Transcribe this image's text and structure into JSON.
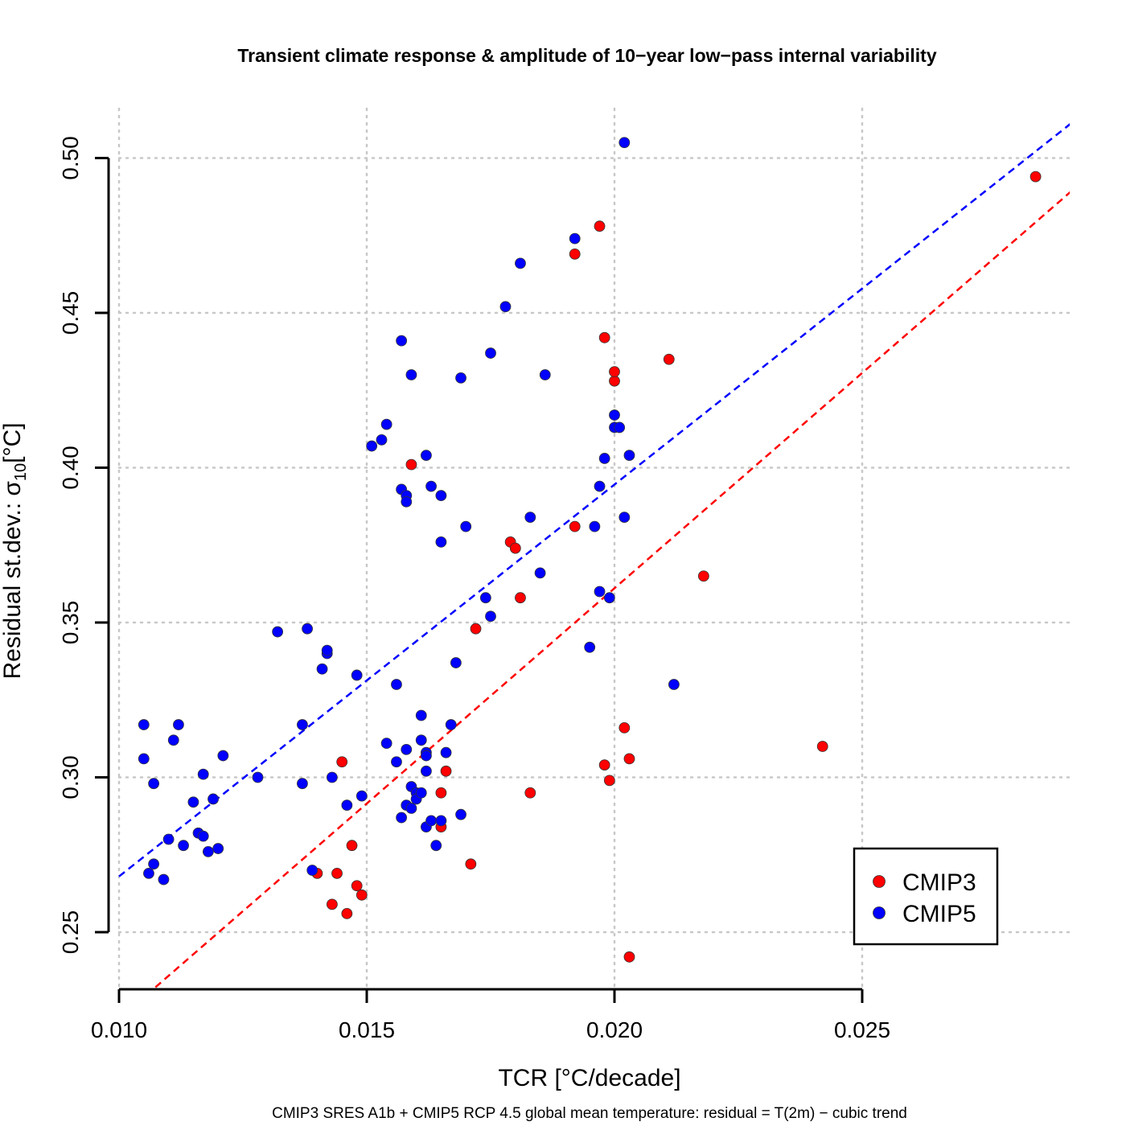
{
  "chart_data": {
    "type": "scatter",
    "title": "Transient climate response & amplitude of 10−year low−pass internal variability",
    "xlabel": "TCR [°C/decade]",
    "ylabel_main": "Residual st.dev.: σ",
    "ylabel_sub": "10",
    "ylabel_unit": "[°C]",
    "caption": "CMIP3 SRES A1b + CMIP5 RCP 4.5 global mean temperature: residual = T(2m) − cubic trend",
    "xlim": [
      0.01,
      0.029
    ],
    "ylim": [
      0.232,
      0.51
    ],
    "x_ticks": [
      0.01,
      0.015,
      0.02,
      0.025
    ],
    "x_tick_labels": [
      "0.010",
      "0.015",
      "0.020",
      "0.025"
    ],
    "y_ticks": [
      0.25,
      0.3,
      0.35,
      0.4,
      0.45,
      0.5
    ],
    "y_tick_labels": [
      "0.25",
      "0.30",
      "0.35",
      "0.40",
      "0.45",
      "0.50"
    ],
    "grid": true,
    "legend_position": "bottom-right",
    "series": [
      {
        "name": "CMIP3",
        "color": "#ff0000",
        "fit_line": [
          [
            0.01,
            0.222
          ],
          [
            0.0292,
            0.489
          ]
        ],
        "points": [
          [
            0.014,
            0.269
          ],
          [
            0.0143,
            0.259
          ],
          [
            0.0144,
            0.269
          ],
          [
            0.0145,
            0.305
          ],
          [
            0.0146,
            0.256
          ],
          [
            0.0147,
            0.278
          ],
          [
            0.0148,
            0.265
          ],
          [
            0.0149,
            0.262
          ],
          [
            0.0159,
            0.401
          ],
          [
            0.0165,
            0.295
          ],
          [
            0.0165,
            0.284
          ],
          [
            0.0166,
            0.302
          ],
          [
            0.0171,
            0.272
          ],
          [
            0.0172,
            0.348
          ],
          [
            0.0179,
            0.376
          ],
          [
            0.018,
            0.374
          ],
          [
            0.0181,
            0.358
          ],
          [
            0.0183,
            0.295
          ],
          [
            0.0192,
            0.469
          ],
          [
            0.0192,
            0.381
          ],
          [
            0.0197,
            0.478
          ],
          [
            0.0198,
            0.304
          ],
          [
            0.0198,
            0.442
          ],
          [
            0.0199,
            0.299
          ],
          [
            0.02,
            0.428
          ],
          [
            0.02,
            0.431
          ],
          [
            0.0202,
            0.316
          ],
          [
            0.0203,
            0.306
          ],
          [
            0.0203,
            0.242
          ],
          [
            0.0211,
            0.435
          ],
          [
            0.0218,
            0.365
          ],
          [
            0.0242,
            0.31
          ],
          [
            0.0285,
            0.494
          ]
        ]
      },
      {
        "name": "CMIP5",
        "color": "#0000ff",
        "fit_line": [
          [
            0.01,
            0.268
          ],
          [
            0.0292,
            0.511
          ]
        ],
        "points": [
          [
            0.0105,
            0.317
          ],
          [
            0.0105,
            0.306
          ],
          [
            0.0106,
            0.269
          ],
          [
            0.0107,
            0.298
          ],
          [
            0.0107,
            0.272
          ],
          [
            0.0109,
            0.267
          ],
          [
            0.011,
            0.28
          ],
          [
            0.0111,
            0.312
          ],
          [
            0.0112,
            0.317
          ],
          [
            0.0113,
            0.278
          ],
          [
            0.0115,
            0.292
          ],
          [
            0.0116,
            0.282
          ],
          [
            0.0117,
            0.301
          ],
          [
            0.0117,
            0.281
          ],
          [
            0.0118,
            0.276
          ],
          [
            0.0119,
            0.293
          ],
          [
            0.012,
            0.277
          ],
          [
            0.0121,
            0.307
          ],
          [
            0.0128,
            0.3
          ],
          [
            0.0132,
            0.347
          ],
          [
            0.0137,
            0.298
          ],
          [
            0.0137,
            0.317
          ],
          [
            0.0138,
            0.348
          ],
          [
            0.0139,
            0.27
          ],
          [
            0.0141,
            0.335
          ],
          [
            0.0142,
            0.34
          ],
          [
            0.0142,
            0.341
          ],
          [
            0.0143,
            0.3
          ],
          [
            0.0146,
            0.291
          ],
          [
            0.0148,
            0.333
          ],
          [
            0.0149,
            0.294
          ],
          [
            0.0151,
            0.407
          ],
          [
            0.0153,
            0.409
          ],
          [
            0.0154,
            0.311
          ],
          [
            0.0154,
            0.414
          ],
          [
            0.0156,
            0.305
          ],
          [
            0.0156,
            0.33
          ],
          [
            0.0157,
            0.441
          ],
          [
            0.0157,
            0.287
          ],
          [
            0.0157,
            0.393
          ],
          [
            0.0158,
            0.391
          ],
          [
            0.0158,
            0.389
          ],
          [
            0.0158,
            0.309
          ],
          [
            0.0158,
            0.291
          ],
          [
            0.0159,
            0.43
          ],
          [
            0.0159,
            0.29
          ],
          [
            0.0159,
            0.297
          ],
          [
            0.016,
            0.295
          ],
          [
            0.016,
            0.293
          ],
          [
            0.0161,
            0.312
          ],
          [
            0.0161,
            0.32
          ],
          [
            0.0161,
            0.295
          ],
          [
            0.0162,
            0.404
          ],
          [
            0.0162,
            0.308
          ],
          [
            0.0162,
            0.302
          ],
          [
            0.0162,
            0.284
          ],
          [
            0.0162,
            0.307
          ],
          [
            0.0163,
            0.286
          ],
          [
            0.0163,
            0.394
          ],
          [
            0.0164,
            0.278
          ],
          [
            0.0165,
            0.286
          ],
          [
            0.0165,
            0.391
          ],
          [
            0.0165,
            0.376
          ],
          [
            0.0166,
            0.308
          ],
          [
            0.0167,
            0.317
          ],
          [
            0.0168,
            0.337
          ],
          [
            0.0169,
            0.429
          ],
          [
            0.0169,
            0.288
          ],
          [
            0.017,
            0.381
          ],
          [
            0.0174,
            0.358
          ],
          [
            0.0175,
            0.437
          ],
          [
            0.0175,
            0.352
          ],
          [
            0.0178,
            0.452
          ],
          [
            0.0181,
            0.466
          ],
          [
            0.0183,
            0.384
          ],
          [
            0.0185,
            0.366
          ],
          [
            0.0186,
            0.43
          ],
          [
            0.0192,
            0.474
          ],
          [
            0.0195,
            0.342
          ],
          [
            0.0196,
            0.381
          ],
          [
            0.0197,
            0.394
          ],
          [
            0.0197,
            0.36
          ],
          [
            0.0198,
            0.403
          ],
          [
            0.0199,
            0.358
          ],
          [
            0.02,
            0.417
          ],
          [
            0.02,
            0.413
          ],
          [
            0.0201,
            0.413
          ],
          [
            0.0202,
            0.505
          ],
          [
            0.0202,
            0.384
          ],
          [
            0.0203,
            0.404
          ],
          [
            0.0212,
            0.33
          ]
        ]
      }
    ]
  }
}
